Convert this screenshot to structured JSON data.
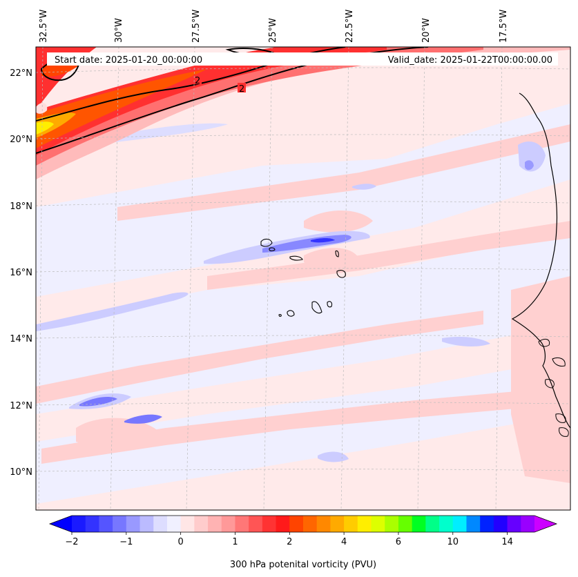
{
  "map": {
    "start_date": "Start date: 2025-01-20_00:00:00",
    "valid_date": "Valid_date: 2025-01-22T00:00:00.00",
    "lon_labels": [
      "32.5°W",
      "30°W",
      "27.5°W",
      "25°W",
      "22.5°W",
      "20°W",
      "17.5°W"
    ],
    "lat_labels": [
      "22°N",
      "20°N",
      "18°N",
      "16°N",
      "14°N",
      "12°N",
      "10°N"
    ],
    "contour_labels": [
      "2",
      "2"
    ]
  },
  "colorbar": {
    "label": "300 hPa potenital vorticity (PVU)",
    "tick_labels": [
      "−2",
      "−1",
      "0",
      "1",
      "2",
      "4",
      "6",
      "10",
      "14"
    ],
    "colors": [
      "#1a1aff",
      "#3333ff",
      "#5555ff",
      "#7777ff",
      "#9999ff",
      "#bbbbff",
      "#ddddff",
      "#f0f0ff",
      "#ffe6e6",
      "#ffcccc",
      "#ffb3b3",
      "#ff9999",
      "#ff7777",
      "#ff5555",
      "#ff3333",
      "#ff1a1a",
      "#ff4400",
      "#ff6600",
      "#ff8800",
      "#ffaa00",
      "#ffcc00",
      "#ffee00",
      "#ddff00",
      "#aaff00",
      "#66ff00",
      "#00ff22",
      "#00ff88",
      "#00ffcc",
      "#00eeff",
      "#0088ff",
      "#0022ff",
      "#2200ff",
      "#6600ff",
      "#9900ff"
    ],
    "under_color": "#0000ff",
    "over_color": "#cc00ff"
  },
  "colors": {
    "background_field": "#ffe8e8",
    "neg_field": "#eeeeff",
    "coast": "#000000"
  }
}
